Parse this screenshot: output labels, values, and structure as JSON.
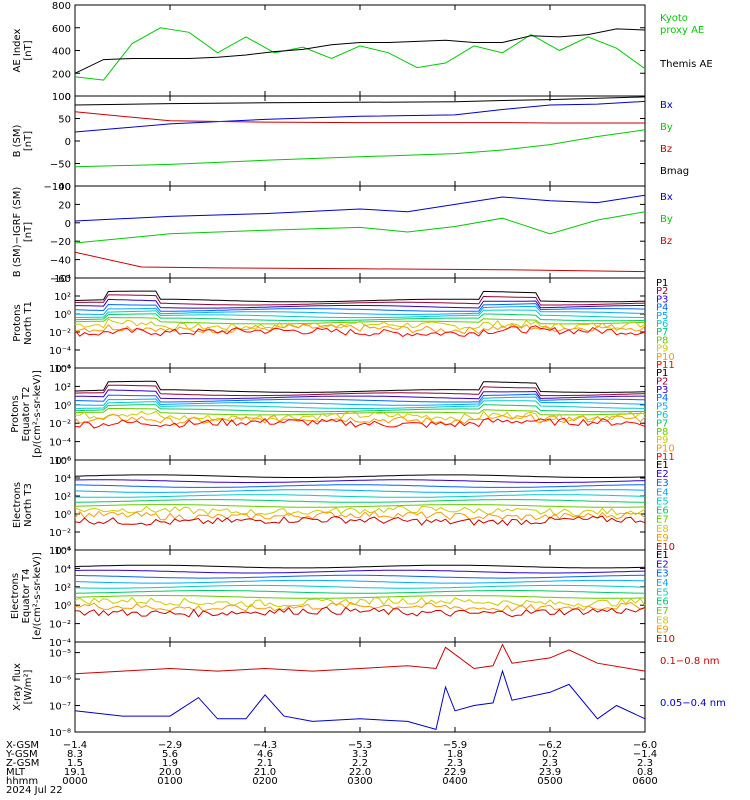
{
  "chart_data": [
    {
      "type": "line",
      "ylabel": "AE Index\n[nT]",
      "ylim": [
        0,
        800
      ],
      "yticks": [
        "0",
        "200",
        "400",
        "600",
        "800"
      ],
      "series": [
        {
          "name": "Kyoto\nproxy AE",
          "color": "#00cc00",
          "x": [
            0,
            0.3,
            0.6,
            0.9,
            1.2,
            1.5,
            1.8,
            2.1,
            2.4,
            2.7,
            3.0,
            3.3,
            3.6,
            3.9,
            4.2,
            4.5,
            4.8,
            5.1,
            5.4,
            5.7,
            6.0
          ],
          "y": [
            170,
            140,
            460,
            600,
            560,
            380,
            520,
            380,
            430,
            330,
            440,
            380,
            250,
            290,
            440,
            380,
            540,
            400,
            520,
            420,
            240
          ]
        },
        {
          "name": "Themis AE",
          "color": "#000000",
          "x": [
            0,
            0.3,
            0.6,
            0.9,
            1.2,
            1.5,
            1.8,
            2.1,
            2.4,
            2.7,
            3.0,
            3.3,
            3.6,
            3.9,
            4.2,
            4.5,
            4.8,
            5.1,
            5.4,
            5.7,
            6.0
          ],
          "y": [
            200,
            320,
            330,
            330,
            330,
            340,
            360,
            390,
            410,
            450,
            470,
            470,
            480,
            490,
            470,
            470,
            530,
            520,
            540,
            590,
            580
          ]
        }
      ]
    },
    {
      "type": "line",
      "ylabel": "B (SM)\n[nT]",
      "ylim": [
        -100,
        100
      ],
      "yticks": [
        "−100",
        "−50",
        "0",
        "50",
        "100"
      ],
      "series": [
        {
          "name": "Bx",
          "color": "#0000cc",
          "x": [
            0,
            1,
            2,
            3,
            4,
            4.5,
            5,
            5.5,
            6
          ],
          "y": [
            20,
            38,
            48,
            55,
            58,
            70,
            80,
            82,
            88
          ]
        },
        {
          "name": "By",
          "color": "#00cc00",
          "x": [
            0,
            1,
            2,
            3,
            4,
            4.5,
            5,
            5.5,
            6
          ],
          "y": [
            -57,
            -52,
            -43,
            -35,
            -28,
            -20,
            -8,
            10,
            25
          ]
        },
        {
          "name": "Bz",
          "color": "#cc0000",
          "x": [
            0,
            1,
            2,
            3,
            4,
            4.5,
            5,
            5.5,
            6
          ],
          "y": [
            65,
            45,
            42,
            41,
            41,
            41,
            40,
            40,
            40
          ]
        },
        {
          "name": "Bmag",
          "color": "#000000",
          "x": [
            0,
            1,
            2,
            3,
            4,
            4.5,
            5,
            5.5,
            6
          ],
          "y": [
            80,
            83,
            85,
            86,
            87,
            90,
            92,
            95,
            98
          ]
        }
      ]
    },
    {
      "type": "line",
      "ylabel": "B (SM)−IGRF (SM)\n[nT]",
      "ylim": [
        -60,
        40
      ],
      "yticks": [
        "−60",
        "−40",
        "−20",
        "0",
        "20",
        "40"
      ],
      "series": [
        {
          "name": "Bx",
          "color": "#0000cc",
          "x": [
            0,
            1,
            2,
            3,
            3.5,
            4,
            4.5,
            5,
            5.5,
            6
          ],
          "y": [
            2,
            7,
            10,
            15,
            12,
            20,
            28,
            24,
            22,
            30
          ]
        },
        {
          "name": "By",
          "color": "#00cc00",
          "x": [
            0,
            1,
            2,
            3,
            3.5,
            4,
            4.5,
            5,
            5.5,
            6
          ],
          "y": [
            -22,
            -12,
            -8,
            -5,
            -10,
            -4,
            5,
            -12,
            3,
            12
          ]
        },
        {
          "name": "Bz",
          "color": "#cc0000",
          "x": [
            0,
            0.7,
            1.5,
            3,
            4.5,
            6
          ],
          "y": [
            -32,
            -48,
            -49,
            -50,
            -51,
            -53
          ]
        }
      ]
    },
    {
      "type": "line",
      "log": true,
      "ylabel": "Protons\nNorth T1",
      "ylim": [
        -6,
        4
      ],
      "yticks": [
        "10⁻⁶",
        "10⁻⁴",
        "10⁻²",
        "10⁰",
        "10²",
        "10⁴"
      ],
      "legend": [
        "P1",
        "P2",
        "P3",
        "P4",
        "P5",
        "P6",
        "P7",
        "P8",
        "P9",
        "P10",
        "P11"
      ]
    },
    {
      "type": "line",
      "log": true,
      "ylabel": "Protons\nEquator T2\n[p/(cm²-s-sr-keV)]",
      "ylim": [
        -6,
        4
      ],
      "yticks": [
        "10⁻⁶",
        "10⁻⁴",
        "10⁻²",
        "10⁰",
        "10²",
        "10⁴"
      ],
      "legend": [
        "P1",
        "P2",
        "P3",
        "P4",
        "P5",
        "P6",
        "P7",
        "P8",
        "P9",
        "P10",
        "P11"
      ]
    },
    {
      "type": "line",
      "log": true,
      "ylabel": "Electrons\nNorth T3",
      "ylim": [
        -4,
        6
      ],
      "yticks": [
        "10⁻⁴",
        "10⁻²",
        "10⁰",
        "10²",
        "10⁴",
        "10⁶"
      ],
      "legend": [
        "E1",
        "E2",
        "E3",
        "E4",
        "E5",
        "E6",
        "E7",
        "E8",
        "E9",
        "E10"
      ]
    },
    {
      "type": "line",
      "log": true,
      "ylabel": "Electrons\nEquator T4\n[e/(cm²-s-sr-keV)]",
      "ylim": [
        -4,
        6
      ],
      "yticks": [
        "10⁻⁴",
        "10⁻²",
        "10⁰",
        "10²",
        "10⁴",
        "10⁶"
      ],
      "legend": [
        "E1",
        "E2",
        "E3",
        "E4",
        "E5",
        "E6",
        "E7",
        "E8",
        "E9",
        "E10"
      ]
    },
    {
      "type": "line",
      "log": true,
      "ylabel": "X-ray flux\n[W/m²]",
      "ylim": [
        -8,
        -4.6
      ],
      "yticks": [
        "10⁻⁸",
        "10⁻⁷",
        "10⁻⁶",
        "10⁻⁵"
      ],
      "series": [
        {
          "name": "0.1−0.8 nm",
          "color": "#cc0000",
          "x": [
            0,
            0.5,
            1.0,
            1.5,
            2.0,
            2.5,
            3.0,
            3.5,
            3.8,
            3.9,
            4.2,
            4.4,
            4.5,
            4.6,
            5.0,
            5.2,
            5.5,
            6.0
          ],
          "y": [
            -5.8,
            -5.7,
            -5.6,
            -5.7,
            -5.6,
            -5.7,
            -5.6,
            -5.5,
            -5.6,
            -4.8,
            -5.6,
            -5.5,
            -4.7,
            -5.4,
            -5.2,
            -4.9,
            -5.4,
            -5.7
          ]
        },
        {
          "name": "0.05−0.4 nm",
          "color": "#0000cc",
          "x": [
            0,
            0.5,
            1.0,
            1.3,
            1.5,
            1.8,
            2.0,
            2.2,
            2.5,
            3.0,
            3.5,
            3.8,
            3.9,
            4.0,
            4.2,
            4.4,
            4.5,
            4.6,
            5.0,
            5.2,
            5.5,
            5.7,
            6.0
          ],
          "y": [
            -7.2,
            -7.4,
            -7.4,
            -6.7,
            -7.5,
            -7.5,
            -6.6,
            -7.4,
            -7.6,
            -7.5,
            -7.6,
            -7.9,
            -6.3,
            -7.2,
            -7.0,
            -6.9,
            -5.7,
            -6.8,
            -6.5,
            -6.2,
            -7.5,
            -7.0,
            -7.5
          ]
        }
      ]
    }
  ],
  "time_axis": {
    "row_labels": [
      "X-GSM",
      "Y-GSM",
      "Z-GSM",
      "MLT",
      "hhmm",
      "2024 Jul 22"
    ],
    "ticks": [
      {
        "x": "−1.4",
        "y": "8.3",
        "z": "1.5",
        "mlt": "19.1",
        "hhmm": "0000"
      },
      {
        "x": "−2.9",
        "y": "5.6",
        "z": "1.9",
        "mlt": "20.0",
        "hhmm": "0100"
      },
      {
        "x": "−4.3",
        "y": "4.6",
        "z": "2.1",
        "mlt": "21.0",
        "hhmm": "0200"
      },
      {
        "x": "−5.3",
        "y": "3.3",
        "z": "2.2",
        "mlt": "22.0",
        "hhmm": "0300"
      },
      {
        "x": "−5.9",
        "y": "1.8",
        "z": "2.3",
        "mlt": "22.9",
        "hhmm": "0400"
      },
      {
        "x": "−6.2",
        "y": "0.2",
        "z": "2.3",
        "mlt": "23.9",
        "hhmm": "0500"
      },
      {
        "x": "−6.0",
        "y": "−1.4",
        "z": "2.3",
        "mlt": "0.8",
        "hhmm": "0600"
      }
    ]
  },
  "colors": {
    "protons": [
      "#000000",
      "#990033",
      "#3300cc",
      "#0066ff",
      "#00aaff",
      "#00cccc",
      "#00cc66",
      "#66cc00",
      "#cccc00",
      "#ff9900",
      "#ff0000"
    ],
    "electrons": [
      "#000000",
      "#3300cc",
      "#0066ff",
      "#00aaff",
      "#00cccc",
      "#00cc66",
      "#66cc00",
      "#cccc00",
      "#ff9900",
      "#cc0000"
    ]
  }
}
